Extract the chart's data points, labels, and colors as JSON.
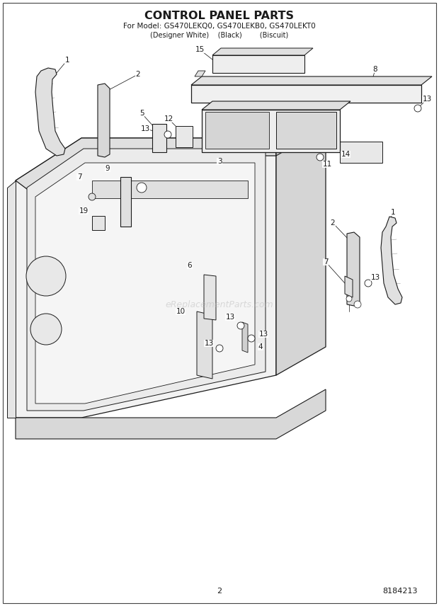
{
  "title": "CONTROL PANEL PARTS",
  "subtitle1": "For Model: GS470LEKQ0, GS470LEKB0, GS470LEKT0",
  "subtitle2": "(Designer White)    (Black)        (Biscuit)",
  "page_number": "2",
  "doc_number": "8184213",
  "watermark": "eReplacementParts.com",
  "bg": "#ffffff",
  "lc": "#1a1a1a",
  "figsize": [
    6.2,
    8.56
  ],
  "dpi": 100
}
